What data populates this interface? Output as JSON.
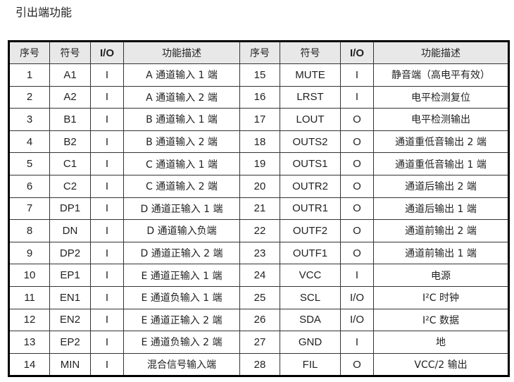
{
  "title": "引出端功能",
  "headers": [
    "序号",
    "符号",
    "I/O",
    "功能描述",
    "序号",
    "符号",
    "I/O",
    "功能描述"
  ],
  "header_bg": "#e8e8e8",
  "rows": [
    [
      [
        "1",
        "A1",
        "I",
        "A 通道输入 1 端"
      ],
      [
        "15",
        "MUTE",
        "I",
        "静音端（高电平有效）"
      ]
    ],
    [
      [
        "2",
        "A2",
        "I",
        "A 通道输入 2 端"
      ],
      [
        "16",
        "LRST",
        "I",
        "电平检测复位"
      ]
    ],
    [
      [
        "3",
        "B1",
        "I",
        "B 通道输入 1 端"
      ],
      [
        "17",
        "LOUT",
        "O",
        "电平检测输出"
      ]
    ],
    [
      [
        "4",
        "B2",
        "I",
        "B 通道输入 2 端"
      ],
      [
        "18",
        "OUTS2",
        "O",
        "通道重低音输出 2 端"
      ]
    ],
    [
      [
        "5",
        "C1",
        "I",
        "C 通道输入 1 端"
      ],
      [
        "19",
        "OUTS1",
        "O",
        "通道重低音输出 1 端"
      ]
    ],
    [
      [
        "6",
        "C2",
        "I",
        "C 通道输入 2 端"
      ],
      [
        "20",
        "OUTR2",
        "O",
        "通道后输出 2 端"
      ]
    ],
    [
      [
        "7",
        "DP1",
        "I",
        "D 通道正输入 1 端"
      ],
      [
        "21",
        "OUTR1",
        "O",
        "通道后输出 1 端"
      ]
    ],
    [
      [
        "8",
        "DN",
        "I",
        "D 通道输入负端"
      ],
      [
        "22",
        "OUTF2",
        "O",
        "通道前输出 2 端"
      ]
    ],
    [
      [
        "9",
        "DP2",
        "I",
        "D 通道正输入 2 端"
      ],
      [
        "23",
        "OUTF1",
        "O",
        "通道前输出 1 端"
      ]
    ],
    [
      [
        "10",
        "EP1",
        "I",
        "E 通道正输入 1 端"
      ],
      [
        "24",
        "VCC",
        "I",
        "电源"
      ]
    ],
    [
      [
        "11",
        "EN1",
        "I",
        "E 通道负输入 1 端"
      ],
      [
        "25",
        "SCL",
        "I/O",
        "I²C 时钟"
      ]
    ],
    [
      [
        "12",
        "EN2",
        "I",
        "E 通道正输入 2 端"
      ],
      [
        "26",
        "SDA",
        "I/O",
        "I²C 数据"
      ]
    ],
    [
      [
        "13",
        "EP2",
        "I",
        "E 通道负输入 2 端"
      ],
      [
        "27",
        "GND",
        "I",
        "地"
      ]
    ],
    [
      [
        "14",
        "MIN",
        "I",
        "混合信号输入端"
      ],
      [
        "28",
        "FIL",
        "O",
        "VCC/2 输出"
      ]
    ]
  ]
}
